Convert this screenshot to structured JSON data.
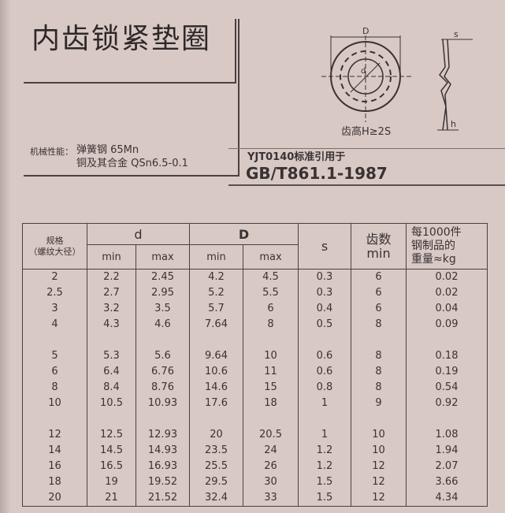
{
  "title": "内齿锁紧垫圈",
  "mechanical_label": "机械性能：",
  "materials": [
    "弹簧钢 65Mn",
    "铜及其合金 QSn6.5-0.1"
  ],
  "standard_ref": "YJT0140标准引用于",
  "standard_code": "GB/T861.1-1987",
  "drawing": {
    "dim_D": "D",
    "dim_d": "d",
    "dim_s": "s",
    "dim_h": "h",
    "tooth_note": "齿高H≥2S"
  },
  "table": {
    "headers": {
      "spec": "规格\n（螺纹大径）",
      "d": "d",
      "D": "D",
      "s": "s",
      "teeth": "齿数\nmin",
      "weight": "每1000件\n钢制品的\n重量≈kg",
      "min": "min",
      "max": "max"
    },
    "groups": [
      [
        [
          "2",
          "2.2",
          "2.45",
          "4.2",
          "4.5",
          "0.3",
          "6",
          "0.02"
        ],
        [
          "2.5",
          "2.7",
          "2.95",
          "5.2",
          "5.5",
          "0.3",
          "6",
          "0.02"
        ],
        [
          "3",
          "3.2",
          "3.5",
          "5.7",
          "6",
          "0.4",
          "6",
          "0.04"
        ],
        [
          "4",
          "4.3",
          "4.6",
          "7.64",
          "8",
          "0.5",
          "8",
          "0.09"
        ]
      ],
      [
        [
          "5",
          "5.3",
          "5.6",
          "9.64",
          "10",
          "0.6",
          "8",
          "0.18"
        ],
        [
          "6",
          "6.4",
          "6.76",
          "10.6",
          "11",
          "0.6",
          "8",
          "0.19"
        ],
        [
          "8",
          "8.4",
          "8.76",
          "14.6",
          "15",
          "0.8",
          "8",
          "0.54"
        ],
        [
          "10",
          "10.5",
          "10.93",
          "17.6",
          "18",
          "1",
          "9",
          "0.92"
        ]
      ],
      [
        [
          "12",
          "12.5",
          "12.93",
          "20",
          "20.5",
          "1",
          "10",
          "1.08"
        ],
        [
          "14",
          "14.5",
          "14.93",
          "23.5",
          "24",
          "1.2",
          "10",
          "1.94"
        ],
        [
          "16",
          "16.5",
          "16.93",
          "25.5",
          "26",
          "1.2",
          "12",
          "2.07"
        ],
        [
          "18",
          "19",
          "19.52",
          "29.5",
          "30",
          "1.5",
          "12",
          "3.66"
        ],
        [
          "20",
          "21",
          "21.52",
          "32.4",
          "33",
          "1.5",
          "12",
          "4.34"
        ]
      ]
    ]
  }
}
